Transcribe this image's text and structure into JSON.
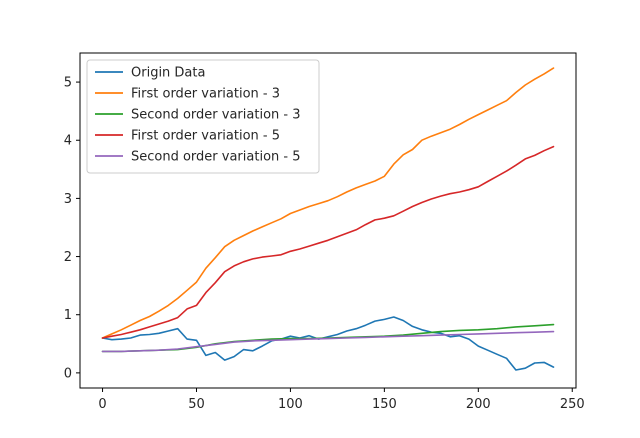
{
  "chart_data": {
    "type": "line",
    "title": "",
    "xlabel": "",
    "ylabel": "",
    "xlim": [
      -12,
      252
    ],
    "ylim": [
      -0.26,
      5.5
    ],
    "xticks": [
      0,
      50,
      100,
      150,
      200,
      250
    ],
    "yticks": [
      0,
      1,
      2,
      3,
      4,
      5
    ],
    "grid": false,
    "legend_position": "upper-left",
    "series": [
      {
        "name": "Origin Data",
        "color": "#1f77b4",
        "x": [
          0,
          5,
          10,
          15,
          20,
          25,
          30,
          35,
          40,
          45,
          50,
          55,
          60,
          65,
          70,
          75,
          80,
          85,
          90,
          95,
          100,
          105,
          110,
          115,
          120,
          125,
          130,
          135,
          140,
          145,
          150,
          155,
          160,
          165,
          170,
          175,
          180,
          185,
          190,
          195,
          200,
          205,
          210,
          215,
          220,
          225,
          230,
          235,
          240
        ],
        "y": [
          0.6,
          0.57,
          0.58,
          0.6,
          0.65,
          0.66,
          0.68,
          0.72,
          0.76,
          0.58,
          0.56,
          0.3,
          0.35,
          0.22,
          0.28,
          0.4,
          0.38,
          0.46,
          0.55,
          0.58,
          0.63,
          0.6,
          0.64,
          0.58,
          0.62,
          0.66,
          0.72,
          0.76,
          0.82,
          0.89,
          0.92,
          0.96,
          0.9,
          0.8,
          0.74,
          0.7,
          0.68,
          0.62,
          0.64,
          0.58,
          0.46,
          0.39,
          0.32,
          0.25,
          0.05,
          0.08,
          0.17,
          0.18,
          0.1
        ]
      },
      {
        "name": "First order variation - 3",
        "color": "#ff7f0e",
        "x": [
          0,
          5,
          10,
          15,
          20,
          25,
          30,
          35,
          40,
          45,
          50,
          55,
          60,
          65,
          70,
          75,
          80,
          85,
          90,
          95,
          100,
          105,
          110,
          115,
          120,
          125,
          130,
          135,
          140,
          145,
          150,
          155,
          160,
          165,
          170,
          175,
          180,
          185,
          190,
          195,
          200,
          205,
          210,
          215,
          220,
          225,
          230,
          235,
          240
        ],
        "y": [
          0.6,
          0.67,
          0.74,
          0.82,
          0.9,
          0.97,
          1.06,
          1.16,
          1.28,
          1.42,
          1.56,
          1.8,
          1.98,
          2.17,
          2.28,
          2.36,
          2.44,
          2.51,
          2.58,
          2.65,
          2.74,
          2.8,
          2.86,
          2.91,
          2.96,
          3.03,
          3.11,
          3.18,
          3.24,
          3.3,
          3.38,
          3.59,
          3.75,
          3.84,
          4.0,
          4.07,
          4.13,
          4.19,
          4.27,
          4.36,
          4.44,
          4.52,
          4.6,
          4.68,
          4.82,
          4.95,
          5.05,
          5.14,
          5.24
        ]
      },
      {
        "name": "Second order variation - 3",
        "color": "#2ca02c",
        "x": [
          0,
          10,
          20,
          30,
          40,
          50,
          60,
          70,
          80,
          90,
          100,
          110,
          120,
          130,
          140,
          150,
          160,
          170,
          180,
          190,
          200,
          210,
          220,
          230,
          240
        ],
        "y": [
          0.37,
          0.37,
          0.38,
          0.39,
          0.4,
          0.44,
          0.5,
          0.54,
          0.56,
          0.58,
          0.59,
          0.59,
          0.6,
          0.61,
          0.62,
          0.63,
          0.65,
          0.68,
          0.71,
          0.73,
          0.74,
          0.76,
          0.79,
          0.81,
          0.83
        ]
      },
      {
        "name": "First order variation - 5",
        "color": "#d62728",
        "x": [
          0,
          5,
          10,
          15,
          20,
          25,
          30,
          35,
          40,
          45,
          50,
          55,
          60,
          65,
          70,
          75,
          80,
          85,
          90,
          95,
          100,
          105,
          110,
          115,
          120,
          125,
          130,
          135,
          140,
          145,
          150,
          155,
          160,
          165,
          170,
          175,
          180,
          185,
          190,
          195,
          200,
          205,
          210,
          215,
          220,
          225,
          230,
          235,
          240
        ],
        "y": [
          0.6,
          0.63,
          0.66,
          0.7,
          0.74,
          0.79,
          0.84,
          0.89,
          0.95,
          1.1,
          1.16,
          1.38,
          1.55,
          1.74,
          1.84,
          1.91,
          1.96,
          1.99,
          2.01,
          2.03,
          2.09,
          2.13,
          2.18,
          2.23,
          2.28,
          2.34,
          2.4,
          2.46,
          2.55,
          2.63,
          2.66,
          2.7,
          2.78,
          2.86,
          2.93,
          2.99,
          3.04,
          3.08,
          3.11,
          3.15,
          3.2,
          3.29,
          3.38,
          3.47,
          3.57,
          3.68,
          3.74,
          3.82,
          3.89
        ]
      },
      {
        "name": "Second order variation - 5",
        "color": "#9467bd",
        "x": [
          0,
          10,
          20,
          30,
          40,
          50,
          60,
          70,
          80,
          90,
          100,
          110,
          120,
          130,
          140,
          150,
          160,
          170,
          180,
          190,
          200,
          210,
          220,
          230,
          240
        ],
        "y": [
          0.37,
          0.37,
          0.38,
          0.39,
          0.41,
          0.45,
          0.49,
          0.53,
          0.55,
          0.56,
          0.57,
          0.58,
          0.59,
          0.6,
          0.61,
          0.62,
          0.63,
          0.64,
          0.65,
          0.66,
          0.67,
          0.68,
          0.69,
          0.7,
          0.71
        ]
      }
    ]
  }
}
